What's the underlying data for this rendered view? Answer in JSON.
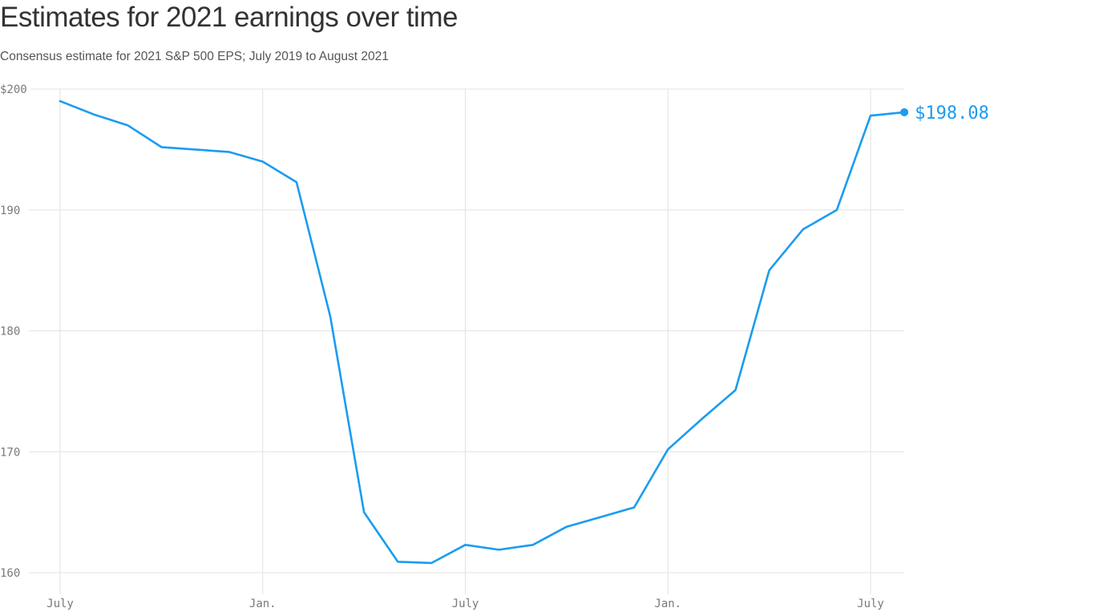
{
  "header": {
    "title": "Estimates for 2021 earnings over time",
    "subtitle": "Consensus estimate for 2021 S&P 500 EPS; July 2019 to August 2021"
  },
  "colors": {
    "line": "#1a9cf0",
    "grid": "#e2e2e2",
    "tick_text": "#7a7a7a",
    "title": "#333333"
  },
  "end_label": "$198.08",
  "chart_data": {
    "type": "line",
    "title": "Estimates for 2021 earnings over time",
    "subtitle": "Consensus estimate for 2021 S&P 500 EPS; July 2019 to August 2021",
    "xlabel": "",
    "ylabel": "",
    "ylim": [
      160,
      200
    ],
    "yticks": [
      {
        "value": 200,
        "label": "$200"
      },
      {
        "value": 190,
        "label": "190"
      },
      {
        "value": 180,
        "label": "180"
      },
      {
        "value": 170,
        "label": "170"
      },
      {
        "value": 160,
        "label": "160"
      }
    ],
    "xticks": [
      {
        "index": 0,
        "label": "July"
      },
      {
        "index": 6,
        "label": "Jan."
      },
      {
        "index": 12,
        "label": "July"
      },
      {
        "index": 18,
        "label": "Jan."
      },
      {
        "index": 24,
        "label": "July"
      }
    ],
    "grid": true,
    "legend": "none",
    "x": [
      "2019-07",
      "2019-08",
      "2019-09",
      "2019-10",
      "2019-11",
      "2019-12",
      "2020-01",
      "2020-02",
      "2020-03",
      "2020-04",
      "2020-05",
      "2020-06",
      "2020-07",
      "2020-08",
      "2020-09",
      "2020-10",
      "2020-11",
      "2020-12",
      "2021-01",
      "2021-02",
      "2021-03",
      "2021-04",
      "2021-05",
      "2021-06",
      "2021-07",
      "2021-08"
    ],
    "series": [
      {
        "name": "2021 S&P 500 EPS consensus estimate",
        "values": [
          199.0,
          197.9,
          197.0,
          195.2,
          195.0,
          194.8,
          194.0,
          192.3,
          181.2,
          165.0,
          160.9,
          160.8,
          162.3,
          161.9,
          162.3,
          163.8,
          164.6,
          165.4,
          170.2,
          172.7,
          175.1,
          185.0,
          188.4,
          190.0,
          197.8,
          198.08
        ]
      }
    ],
    "annotations": [
      {
        "index": 25,
        "label": "$198.08"
      }
    ]
  }
}
